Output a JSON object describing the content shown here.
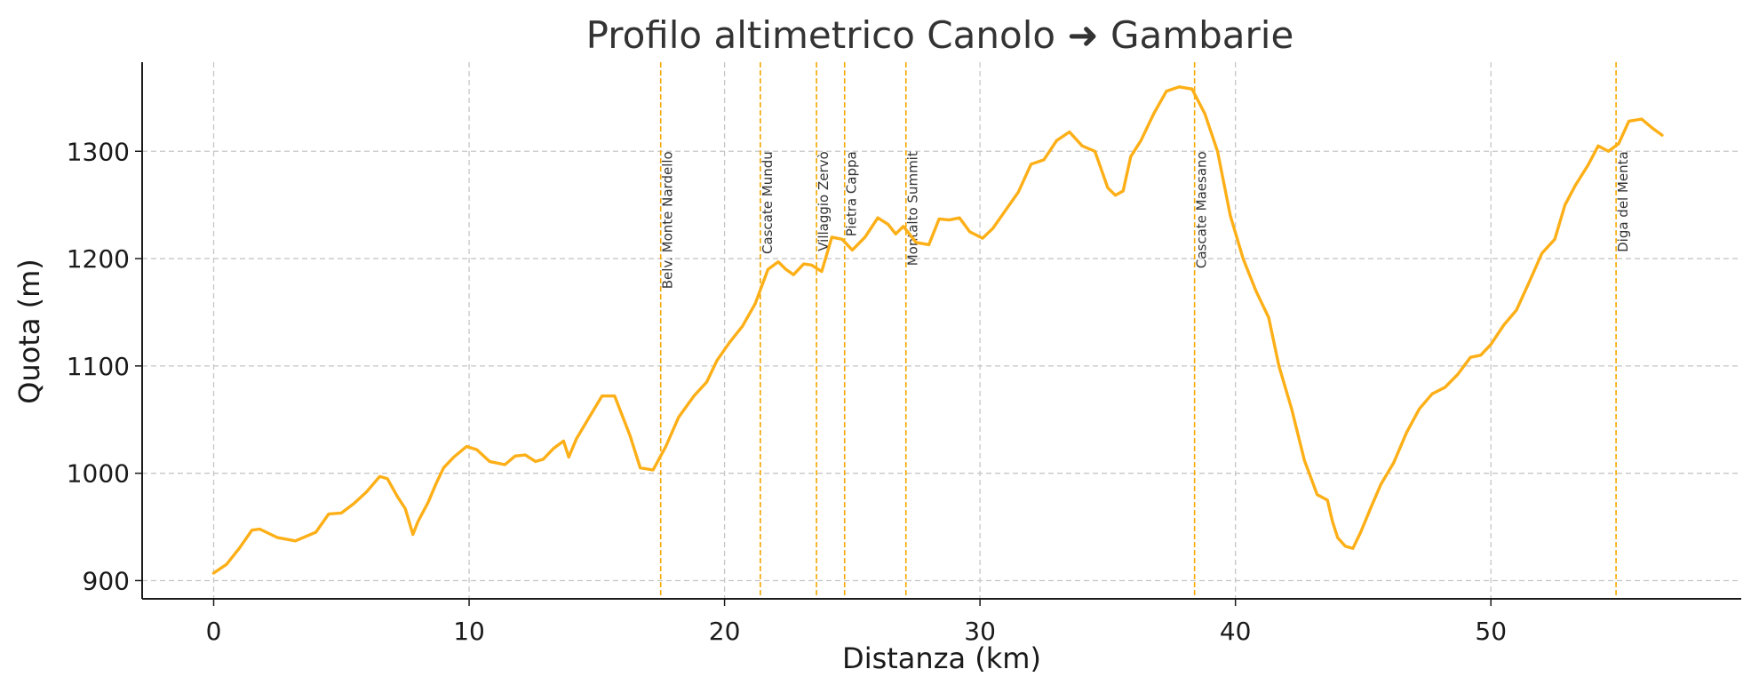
{
  "chart_data": {
    "type": "line",
    "title": "Profilo altimetrico Canolo ➜ Gambarie",
    "xlabel": "Distanza (km)",
    "ylabel": "Quota (m)",
    "xlim": [
      -2.8,
      59.8
    ],
    "ylim": [
      883,
      1383
    ],
    "xticks": [
      0,
      10,
      20,
      30,
      40,
      50
    ],
    "yticks": [
      900,
      1000,
      1100,
      1200,
      1300
    ],
    "xtick_labels": [
      "0",
      "10",
      "20",
      "30",
      "40",
      "50"
    ],
    "ytick_labels": [
      "900",
      "1000",
      "1100",
      "1200",
      "1300"
    ],
    "grid": true,
    "colors": {
      "line": "#FDAF17",
      "markers": "#F5A800",
      "grid": "#C6C6C6"
    },
    "series": [
      {
        "x": [
          0,
          0.5,
          1,
          1.5,
          1.8,
          2.5,
          3.2,
          4,
          4.5,
          5,
          5.5,
          6,
          6.5,
          6.8,
          7.2,
          7.5,
          7.8,
          8,
          8.4,
          8.7,
          9,
          9.4,
          9.9,
          10.3,
          10.8,
          11.4,
          11.8,
          12.2,
          12.6,
          12.9,
          13.3,
          13.7,
          13.9,
          14.2,
          14.7,
          15.2,
          15.7,
          16.3,
          16.7,
          17.2,
          17.7,
          18.2,
          18.8,
          19.3,
          19.7,
          20.2,
          20.7,
          21.2,
          21.7,
          22.1,
          22.4,
          22.7,
          23.1,
          23.4,
          23.8,
          24.2,
          24.6,
          25,
          25.5,
          26,
          26.4,
          26.7,
          27,
          27.5,
          28,
          28.4,
          28.8,
          29.2,
          29.6,
          30.1,
          30.5,
          31,
          31.5,
          32,
          32.5,
          33,
          33.5,
          34,
          34.5,
          35,
          35.3,
          35.6,
          35.9,
          36.3,
          36.8,
          37.3,
          37.8,
          38.3,
          38.8,
          39.3,
          39.8,
          40.3,
          40.8,
          41.3,
          41.7,
          42.2,
          42.7,
          43.2,
          43.6,
          43.8,
          44,
          44.3,
          44.6,
          44.9,
          45.3,
          45.7,
          46.2,
          46.7,
          47.2,
          47.7,
          48.2,
          48.7,
          49.2,
          49.6,
          50,
          50.5,
          51,
          51.5,
          52,
          52.5,
          52.9,
          53.3,
          53.8,
          54.2,
          54.6,
          55,
          55.4,
          55.9,
          56.3,
          56.7
        ],
        "y": [
          907,
          915,
          930,
          947,
          948,
          940,
          937,
          945,
          962,
          963,
          972,
          983,
          997,
          995,
          978,
          967,
          943,
          955,
          973,
          990,
          1005,
          1015,
          1025,
          1022,
          1011,
          1008,
          1016,
          1017,
          1011,
          1013,
          1023,
          1030,
          1015,
          1032,
          1052,
          1072,
          1072,
          1035,
          1005,
          1003,
          1025,
          1052,
          1072,
          1085,
          1105,
          1122,
          1137,
          1158,
          1190,
          1197,
          1190,
          1185,
          1195,
          1194,
          1188,
          1220,
          1218,
          1208,
          1220,
          1238,
          1232,
          1223,
          1230,
          1215,
          1213,
          1237,
          1236,
          1238,
          1225,
          1219,
          1228,
          1245,
          1262,
          1288,
          1292,
          1310,
          1318,
          1305,
          1300,
          1266,
          1259,
          1263,
          1295,
          1310,
          1335,
          1356,
          1360,
          1358,
          1335,
          1300,
          1240,
          1200,
          1170,
          1145,
          1100,
          1060,
          1012,
          980,
          975,
          955,
          940,
          932,
          930,
          945,
          968,
          990,
          1010,
          1038,
          1060,
          1074,
          1080,
          1092,
          1108,
          1110,
          1120,
          1138,
          1152,
          1178,
          1205,
          1218,
          1250,
          1268,
          1287,
          1305,
          1300,
          1307,
          1328,
          1330,
          1322,
          1315
        ]
      }
    ],
    "annotations": [
      {
        "x": 17.5,
        "label": "Belv. Monte Nardello"
      },
      {
        "x": 21.4,
        "label": "Cascate Mundu"
      },
      {
        "x": 23.6,
        "label": "Villaggio Zervò"
      },
      {
        "x": 24.7,
        "label": "Pietra Cappa"
      },
      {
        "x": 27.1,
        "label": "Montalto Summit"
      },
      {
        "x": 38.4,
        "label": "Cascate Maesano"
      },
      {
        "x": 54.9,
        "label": "Diga del Menta"
      }
    ],
    "annotation_label_y": 1300
  }
}
